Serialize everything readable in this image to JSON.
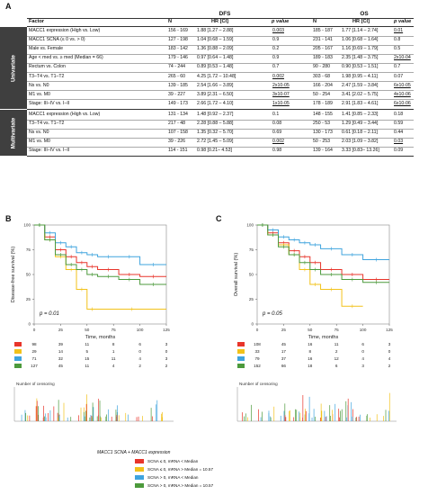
{
  "panels": {
    "a": "A",
    "b": "B",
    "c": "C"
  },
  "table": {
    "group_dfs": "DFS",
    "group_os": "OS",
    "headers": {
      "factor": "Factor",
      "n": "N",
      "hr": "HR [CI]",
      "p": "p value"
    },
    "sections": {
      "univariate": "Univariate",
      "multivariate": "Multivariate"
    },
    "rows": [
      {
        "factor": "MACC1 expression (High vs. Low)",
        "dfs_n": "156 - 169",
        "dfs_hr": "1.88 [1.27 – 2.88]",
        "dfs_p": "0.003",
        "os_n": "185 - 187",
        "os_hr": "1.77 [1.14 – 2.74]",
        "os_p": "0.01",
        "dfs_u": true,
        "os_u": true
      },
      {
        "factor": "MACC1 SCNA (≤ 0 vs. > 0)",
        "dfs_n": "127 - 198",
        "dfs_hr": "1.04 [0.68 – 1.59]",
        "dfs_p": "0.9",
        "os_n": "231 - 141",
        "os_hr": "1.06 [0.68 – 1.64]",
        "os_p": "0.8"
      },
      {
        "factor": "Male vs. Female",
        "dfs_n": "183 - 142",
        "dfs_hr": "1.36 [0.88 – 2.09]",
        "dfs_p": "0.2",
        "os_n": "205 - 167",
        "os_hr": "1.16 [0.69 – 1.79]",
        "os_p": "0.5"
      },
      {
        "factor": "Age < med vs. ≥ med (Median = 66)",
        "dfs_n": "179 - 146",
        "dfs_hr": "0.97 [0.64 – 1.48]",
        "dfs_p": "0.9",
        "os_n": "189 - 183",
        "os_hr": "2.35 [1.48 – 3.75]",
        "os_p": "2x10-04",
        "os_u": true
      },
      {
        "factor": "Rectum vs. Colon",
        "dfs_n": "74 - 244",
        "dfs_hr": "0.89 [0.53 – 1.48]",
        "dfs_p": "0.7",
        "os_n": "90 - 280",
        "os_hr": "0.90 [0.53 – 1.51]",
        "os_p": "0.7"
      },
      {
        "factor": "T3–T4 vs. T1–T2",
        "dfs_n": "265 - 60",
        "dfs_hr": "4.25 [1.72 – 10.48]",
        "dfs_p": "0.002",
        "os_n": "303 - 68",
        "os_hr": "1.98 [0.95 – 4.11]",
        "os_p": "0.07",
        "dfs_u": true
      },
      {
        "factor": "Ns vs. N0",
        "dfs_n": "139 - 185",
        "dfs_hr": "2.54 [1.66 – 3.89]",
        "dfs_p": "2x10-05",
        "os_n": "166 - 204",
        "os_hr": "2.47 [1.59 – 3.84]",
        "os_p": "6x10-05",
        "dfs_u": true,
        "os_u": true
      },
      {
        "factor": "M1 vs. M0",
        "dfs_n": "39 - 227",
        "dfs_hr": "3.89 [2.31 – 6.50]",
        "dfs_p": "3x10-07",
        "os_n": "50 - 254",
        "os_hr": "3.41 [2.02 – 5.75]",
        "os_p": "4x10-06",
        "dfs_u": true,
        "os_u": true
      },
      {
        "factor": "Stage: III–IV vs. I–II",
        "dfs_n": "149 - 173",
        "dfs_hr": "2.66 [1.72 – 4.10]",
        "dfs_p": "1x10-05",
        "os_n": "178 - 189",
        "os_hr": "2.91 [1.83 – 4.61]",
        "os_p": "6x10-06",
        "dfs_u": true,
        "os_u": true
      },
      {
        "factor": "MACC1 expression (High vs. Low)",
        "dfs_n": "131 - 134",
        "dfs_hr": "1.48 [0.92 – 2.37]",
        "dfs_p": "0.1",
        "os_n": "148 - 155",
        "os_hr": "1.41 [0.85 – 2.33]",
        "os_p": "0.18"
      },
      {
        "factor": "T3–T4 vs. T1–T2",
        "dfs_n": "217 - 48",
        "dfs_hr": "2.28 [0.88 – 5.88]",
        "dfs_p": "0.08",
        "os_n": "250 - 53",
        "os_hr": "1.29 [0.49 – 3.44]",
        "os_p": "0.59"
      },
      {
        "factor": "Ns vs. N0",
        "dfs_n": "107 - 158",
        "dfs_hr": "1.35 [0.32 – 5.70]",
        "dfs_p": "0.69",
        "os_n": "130 - 173",
        "os_hr": "0.61 [0.18 – 2.11]",
        "os_p": "0.44"
      },
      {
        "factor": "M1 vs. M0",
        "dfs_n": "39 - 226",
        "dfs_hr": "2.72 [1.45 – 5.09]",
        "dfs_p": "0.002",
        "os_n": "50 - 253",
        "os_hr": "2.03 [1.09 – 3.82]",
        "os_p": "0.03",
        "dfs_u": true,
        "os_u": true
      },
      {
        "factor": "Stage: III–IV vs. I–II",
        "dfs_n": "114 - 151",
        "dfs_hr": "0.98 [0.21– 4.53]",
        "dfs_p": "0.98",
        "os_n": "139 - 164",
        "os_hr": "3.33 [0.83– 13.26]",
        "os_p": "0.09"
      }
    ]
  },
  "colors": {
    "red": "#e8352b",
    "yellow": "#f2c21a",
    "blue": "#3fa4de",
    "green": "#4c9a3c"
  },
  "chart_data": [
    {
      "type": "line",
      "panel": "B",
      "ylabel": "Disease-free survival (%)",
      "xlabel": "Time, months",
      "xlim": [
        0,
        125
      ],
      "ylim": [
        0,
        100
      ],
      "xticks": [
        "0",
        "25",
        "50",
        "75",
        "100",
        "125"
      ],
      "yticks": [
        "0",
        "25",
        "50",
        "75",
        "100"
      ],
      "annotation": "p = 0.01",
      "series": [
        {
          "x": [
            0,
            10,
            20,
            30,
            40,
            50,
            60,
            80,
            100,
            125
          ],
          "values": [
            100,
            88,
            75,
            68,
            62,
            58,
            55,
            50,
            48,
            48
          ]
        },
        {
          "x": [
            0,
            10,
            20,
            30,
            40,
            50,
            60,
            125
          ],
          "values": [
            100,
            85,
            68,
            55,
            35,
            15,
            15,
            15
          ]
        },
        {
          "x": [
            0,
            10,
            20,
            30,
            40,
            50,
            60,
            80,
            100,
            125
          ],
          "values": [
            100,
            92,
            82,
            78,
            72,
            70,
            68,
            68,
            60,
            60
          ]
        },
        {
          "x": [
            0,
            10,
            20,
            30,
            40,
            50,
            60,
            80,
            100,
            125
          ],
          "values": [
            100,
            85,
            70,
            60,
            55,
            50,
            48,
            45,
            40,
            40
          ]
        }
      ],
      "risk_table": [
        [
          "98",
          "39",
          "11",
          "8",
          "6",
          "3"
        ],
        [
          "29",
          "14",
          "5",
          "1",
          "0",
          "0"
        ],
        [
          "71",
          "32",
          "15",
          "11",
          "4",
          "3"
        ],
        [
          "127",
          "45",
          "11",
          "4",
          "2",
          "2"
        ]
      ],
      "censor_title": "Number of censoring"
    },
    {
      "type": "line",
      "panel": "C",
      "ylabel": "Overall survival (%)",
      "xlabel": "Time, months",
      "xlim": [
        0,
        125
      ],
      "ylim": [
        0,
        100
      ],
      "xticks": [
        "0",
        "25",
        "50",
        "75",
        "100",
        "125"
      ],
      "yticks": [
        "0",
        "25",
        "50",
        "75",
        "100"
      ],
      "annotation": "p = 0.05",
      "series": [
        {
          "x": [
            0,
            10,
            20,
            30,
            40,
            50,
            60,
            80,
            100,
            125
          ],
          "values": [
            100,
            92,
            82,
            74,
            68,
            62,
            55,
            50,
            45,
            45
          ]
        },
        {
          "x": [
            0,
            10,
            20,
            30,
            40,
            50,
            60,
            80,
            100
          ],
          "values": [
            100,
            90,
            80,
            70,
            55,
            40,
            35,
            18,
            18
          ]
        },
        {
          "x": [
            0,
            10,
            20,
            30,
            40,
            50,
            60,
            80,
            100,
            125
          ],
          "values": [
            100,
            95,
            88,
            85,
            82,
            80,
            76,
            70,
            65,
            65
          ]
        },
        {
          "x": [
            0,
            10,
            20,
            30,
            40,
            50,
            60,
            80,
            100,
            125
          ],
          "values": [
            100,
            90,
            78,
            70,
            62,
            55,
            50,
            45,
            42,
            42
          ]
        }
      ],
      "risk_table": [
        [
          "108",
          "45",
          "16",
          "11",
          "6",
          "3"
        ],
        [
          "33",
          "17",
          "8",
          "2",
          "0",
          "0"
        ],
        [
          "79",
          "37",
          "16",
          "12",
          "4",
          "4"
        ],
        [
          "152",
          "66",
          "18",
          "6",
          "3",
          "2"
        ]
      ],
      "censor_title": "Number of censoring"
    }
  ],
  "legend": {
    "title": "MACC1 SCNA + MACC1 expression",
    "items": [
      {
        "label": "SCNA ≤ 0, mRNA < Median",
        "color": "#e8352b"
      },
      {
        "label": "SCNA ≤ 0, mRNA > Median = 10.57",
        "color": "#f2c21a"
      },
      {
        "label": "SCNA > 0, mRNA < Median",
        "color": "#3fa4de"
      },
      {
        "label": "SCNA > 0, mRNA > Median = 10.57",
        "color": "#4c9a3c"
      }
    ]
  }
}
